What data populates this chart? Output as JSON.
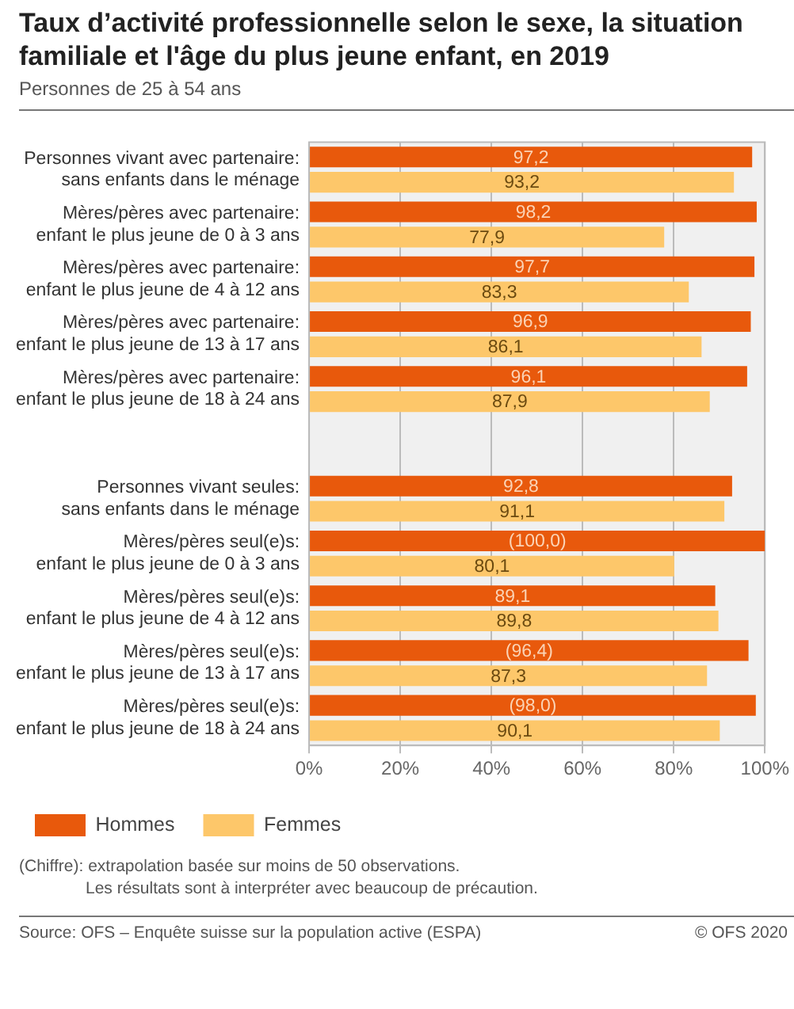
{
  "chart_data": {
    "type": "bar",
    "orientation": "horizontal",
    "title": "Taux d’activité professionnelle selon le sexe, la situation familiale et l'âge du plus jeune enfant, en 2019",
    "subtitle": "Personnes de 25 à 54 ans",
    "categories": [
      "Personnes vivant avec partenaire:\nsans enfants dans le ménage",
      "Mères/pères avec partenaire:\nenfant le plus jeune de 0 à 3 ans",
      "Mères/pères avec partenaire:\nenfant le plus jeune de 4 à 12 ans",
      "Mères/pères avec partenaire:\nenfant le plus jeune de 13 à 17 ans",
      "Mères/pères avec partenaire:\nenfant le plus jeune de 18 à 24 ans",
      null,
      "Personnes vivant seules:\nsans enfants dans le ménage",
      "Mères/pères seul(e)s:\nenfant le plus jeune de 0 à 3 ans",
      "Mères/pères seul(e)s:\nenfant le plus jeune de 4 à 12 ans",
      "Mères/pères seul(e)s:\nenfant le plus jeune de 13 à 17 ans",
      "Mères/pères seul(e)s:\nenfant le plus jeune de 18 à 24 ans"
    ],
    "series": [
      {
        "name": "Hommes",
        "color": "#e8590c",
        "values": [
          97.2,
          98.2,
          97.7,
          96.9,
          96.1,
          null,
          92.8,
          100.0,
          89.1,
          96.4,
          98.0
        ],
        "value_labels": [
          "97,2",
          "98,2",
          "97,7",
          "96,9",
          "96,1",
          null,
          "92,8",
          "(100,0)",
          "89,1",
          "(96,4)",
          "(98,0)"
        ]
      },
      {
        "name": "Femmes",
        "color": "#fdc76a",
        "values": [
          93.2,
          77.9,
          83.3,
          86.1,
          87.9,
          null,
          91.1,
          80.1,
          89.8,
          87.3,
          90.1
        ],
        "value_labels": [
          "93,2",
          "77,9",
          "83,3",
          "86,1",
          "87,9",
          null,
          "91,1",
          "80,1",
          "89,8",
          "87,3",
          "90,1"
        ]
      }
    ],
    "xlim": [
      0,
      100
    ],
    "xticks": [
      {
        "value": 0,
        "label": "0%"
      },
      {
        "value": 20,
        "label": "20%"
      },
      {
        "value": 40,
        "label": "40%"
      },
      {
        "value": 60,
        "label": "60%"
      },
      {
        "value": 80,
        "label": "80%"
      },
      {
        "value": 100,
        "label": "100%"
      }
    ],
    "grid": "x",
    "legend": "bottom left",
    "annotations": [
      "(Chiffre): extrapolation basée sur moins de 50 observations.",
      "Les résultats sont à interpréter avec beaucoup de précaution.",
      "Source: OFS – Enquête suisse sur la population active (ESPA)",
      "© OFS 2020"
    ]
  }
}
